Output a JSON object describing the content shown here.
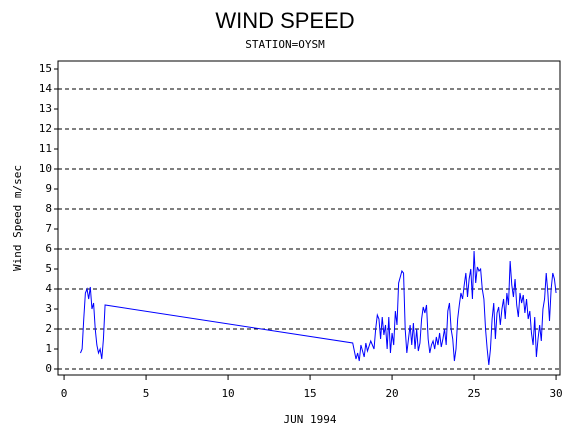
{
  "chart_data": {
    "type": "line",
    "title": "WIND SPEED",
    "subtitle": "STATION=OYSM",
    "x_label": "JUN 1994",
    "y_label": "Wind Speed m/sec",
    "xlim": [
      -0.37,
      30.24
    ],
    "ylim": [
      -0.3,
      15.4
    ],
    "xticks": [
      0,
      5,
      10,
      15,
      20,
      25,
      30
    ],
    "yticks": [
      0,
      1,
      2,
      3,
      4,
      5,
      6,
      7,
      8,
      9,
      10,
      11,
      12,
      13,
      14,
      15
    ],
    "grid_lines": [
      0,
      2,
      4,
      6,
      8,
      10,
      12,
      14
    ],
    "x": [
      1.0,
      1.1,
      1.2,
      1.3,
      1.4,
      1.5,
      1.6,
      1.7,
      1.8,
      1.9,
      2.0,
      2.1,
      2.2,
      2.3,
      2.4,
      2.5,
      17.6,
      17.8,
      17.9,
      18.0,
      18.1,
      18.3,
      18.4,
      18.5,
      18.7,
      18.9,
      19.0,
      19.1,
      19.2,
      19.3,
      19.4,
      19.5,
      19.6,
      19.7,
      19.8,
      19.9,
      20.0,
      20.1,
      20.2,
      20.3,
      20.4,
      20.5,
      20.6,
      20.7,
      20.8,
      20.9,
      21.0,
      21.1,
      21.2,
      21.3,
      21.4,
      21.5,
      21.6,
      21.7,
      21.8,
      21.9,
      22.0,
      22.1,
      22.2,
      22.3,
      22.4,
      22.5,
      22.6,
      22.7,
      22.8,
      22.9,
      23.0,
      23.1,
      23.2,
      23.3,
      23.4,
      23.5,
      23.6,
      23.7,
      23.8,
      23.9,
      24.0,
      24.1,
      24.2,
      24.3,
      24.4,
      24.5,
      24.6,
      24.7,
      24.8,
      24.9,
      25.0,
      25.1,
      25.2,
      25.3,
      25.4,
      25.5,
      25.6,
      25.7,
      25.8,
      25.9,
      26.0,
      26.1,
      26.2,
      26.3,
      26.4,
      26.5,
      26.6,
      26.7,
      26.8,
      26.9,
      27.0,
      27.1,
      27.2,
      27.3,
      27.4,
      27.5,
      27.6,
      27.7,
      27.8,
      27.9,
      28.0,
      28.1,
      28.2,
      28.3,
      28.4,
      28.5,
      28.6,
      28.7,
      28.8,
      28.9,
      29.0,
      29.1,
      29.2,
      29.3,
      29.4,
      29.5,
      29.6,
      29.7,
      29.8,
      29.9,
      30.0
    ],
    "series": [
      {
        "color": "#0000ff",
        "values": [
          0.8,
          1.0,
          2.5,
          3.8,
          4.0,
          3.5,
          4.1,
          3.0,
          3.3,
          2.0,
          1.2,
          0.8,
          1.0,
          0.5,
          1.5,
          3.2,
          1.3,
          0.5,
          0.8,
          0.4,
          1.2,
          0.6,
          1.3,
          0.9,
          1.4,
          1.0,
          2.0,
          2.7,
          2.5,
          1.5,
          2.6,
          1.7,
          2.2,
          1.0,
          2.6,
          0.8,
          1.8,
          1.2,
          2.9,
          2.2,
          4.3,
          4.6,
          4.9,
          4.8,
          2.0,
          0.8,
          1.5,
          2.2,
          1.2,
          2.3,
          1.0,
          2.0,
          0.9,
          1.3,
          2.5,
          3.1,
          2.8,
          3.2,
          1.5,
          0.8,
          1.2,
          1.4,
          1.0,
          1.6,
          1.2,
          1.8,
          1.1,
          1.5,
          2.0,
          1.2,
          2.9,
          3.3,
          2.0,
          1.5,
          0.4,
          1.0,
          2.5,
          3.2,
          3.8,
          3.5,
          4.2,
          4.8,
          3.6,
          4.5,
          5.0,
          3.5,
          5.9,
          4.3,
          5.1,
          4.9,
          5.0,
          4.0,
          3.5,
          2.0,
          1.0,
          0.2,
          1.0,
          2.5,
          3.3,
          1.5,
          2.8,
          3.1,
          2.2,
          3.0,
          3.5,
          2.5,
          3.8,
          3.2,
          5.4,
          4.2,
          3.6,
          4.5,
          3.2,
          2.6,
          3.8,
          3.3,
          3.7,
          2.8,
          3.5,
          2.5,
          2.9,
          1.8,
          1.2,
          2.6,
          0.6,
          1.5,
          2.2,
          1.4,
          3.0,
          3.5,
          4.8,
          3.8,
          2.4,
          4.0,
          4.8,
          4.5,
          3.8
        ]
      }
    ]
  }
}
